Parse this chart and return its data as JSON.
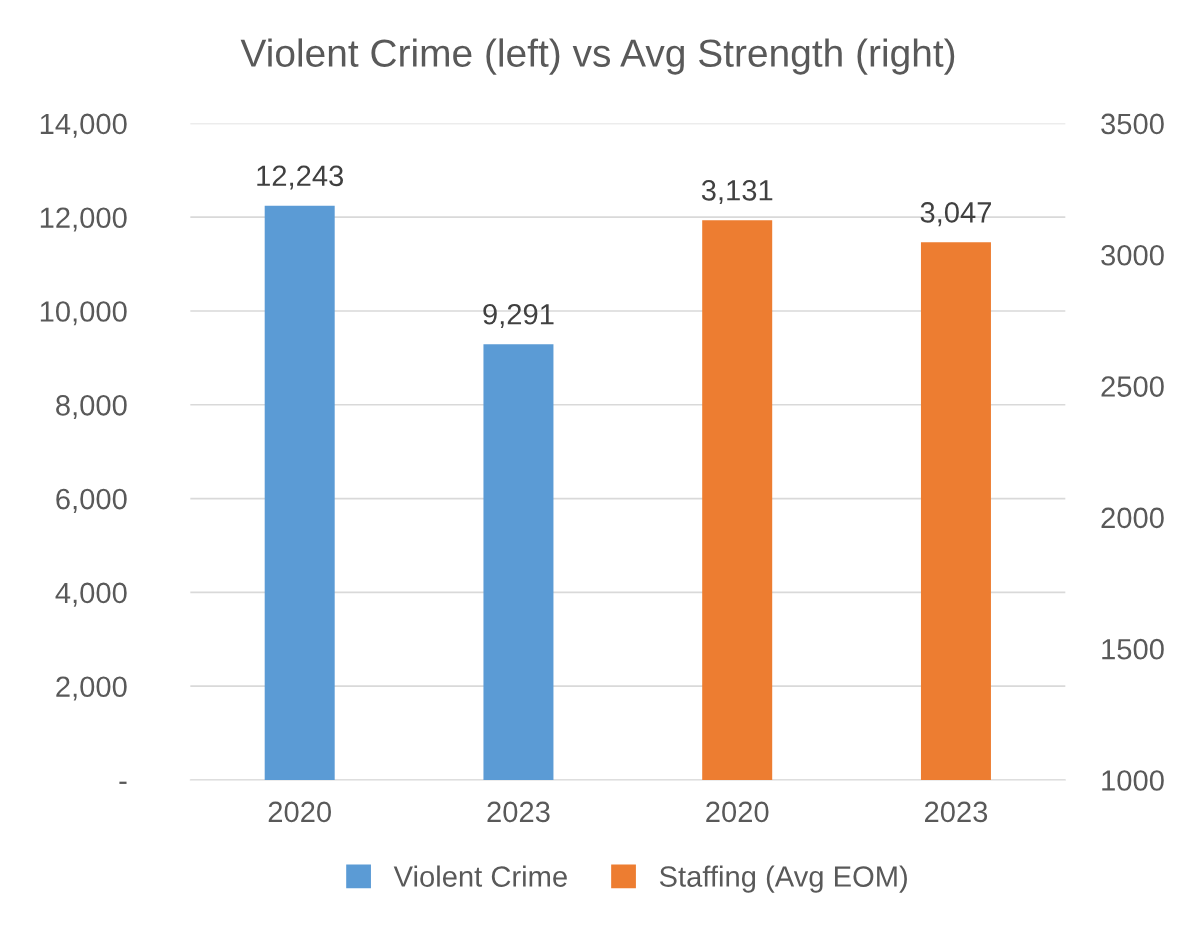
{
  "chart_data": {
    "type": "bar",
    "title": "Violent Crime (left) vs Avg Strength (right)",
    "categories": [
      "2020",
      "2023",
      "2020",
      "2023"
    ],
    "series": [
      {
        "name": "Violent Crime",
        "color": "#5b9bd5",
        "values": [
          12243,
          9291,
          null,
          null
        ],
        "value_labels": [
          "12,243",
          "9,291",
          null,
          null
        ]
      },
      {
        "name": "Staffing (Avg EOM)",
        "color": "#ed7d31",
        "axis": "y2",
        "values": [
          null,
          null,
          3131,
          3047
        ],
        "value_labels": [
          null,
          null,
          "3,131",
          "3,047"
        ]
      }
    ],
    "ylim": [
      0,
      14000
    ],
    "yticks": [
      {
        "value": 0,
        "label": "-"
      },
      {
        "value": 2000,
        "label": "2,000"
      },
      {
        "value": 4000,
        "label": "4,000"
      },
      {
        "value": 6000,
        "label": "6,000"
      },
      {
        "value": 8000,
        "label": "8,000"
      },
      {
        "value": 10000,
        "label": "10,000"
      },
      {
        "value": 12000,
        "label": "12,000"
      },
      {
        "value": 14000,
        "label": "14,000"
      }
    ],
    "y2lim": [
      1000,
      3500
    ],
    "y2ticks": [
      1000,
      1500,
      2000,
      2500,
      3000,
      3500
    ],
    "grid": "y",
    "legend": "bottom"
  }
}
